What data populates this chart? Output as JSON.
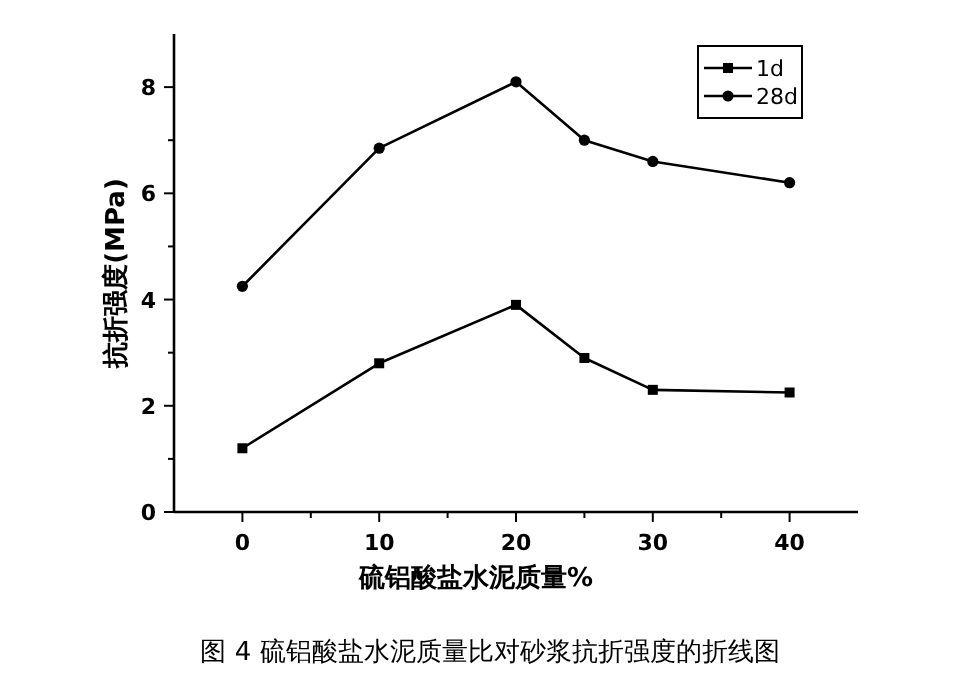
{
  "chart_data": {
    "type": "line",
    "xlabel": "硫铝酸盐水泥质量%",
    "ylabel": "抗折强度(MPa)",
    "annotations": [
      "图 4  硫铝酸盐水泥质量比对砂浆抗折强度的折线图"
    ],
    "x": [
      0,
      10,
      20,
      25,
      30,
      40
    ],
    "series": [
      {
        "name": "1d",
        "color": "#000000",
        "marker": "square",
        "values": [
          1.2,
          2.8,
          3.9,
          2.9,
          2.3,
          2.25
        ]
      },
      {
        "name": "28d",
        "color": "#000000",
        "marker": "circle",
        "values": [
          4.25,
          6.85,
          8.1,
          7.0,
          6.6,
          6.2
        ]
      }
    ],
    "xlim": [
      -5,
      45
    ],
    "xticks": [
      0,
      {
        "value": 5,
        "label": null
      },
      10,
      {
        "value": 15,
        "label": null
      },
      20,
      {
        "value": 25,
        "label": null
      },
      30,
      {
        "value": 35,
        "label": null
      },
      40
    ],
    "ylim": [
      0,
      9
    ],
    "yticks": [
      0,
      {
        "value": 1,
        "label": null
      },
      2,
      {
        "value": 3,
        "label": null
      },
      4,
      {
        "value": 5,
        "label": null
      },
      6,
      {
        "value": 7,
        "label": null
      },
      8
    ],
    "legend": "top right",
    "grid": false,
    "line_style": "solid"
  }
}
